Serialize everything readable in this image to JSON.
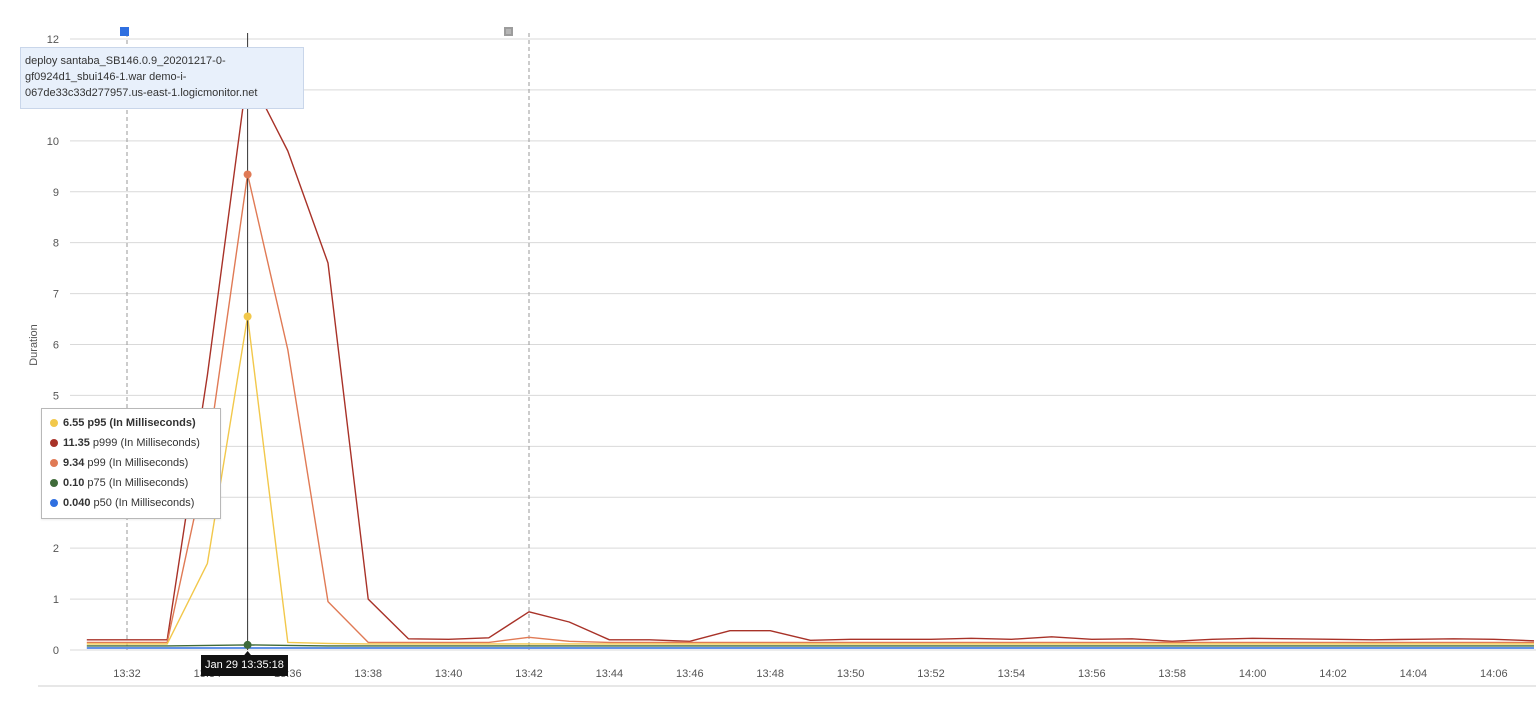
{
  "chart_data": {
    "type": "line",
    "ylabel": "Duration",
    "ylim": [
      0,
      12
    ],
    "yticks": [
      "0",
      "1",
      "2",
      "3",
      "4",
      "5",
      "6",
      "7",
      "8",
      "9",
      "10",
      "11",
      "12"
    ],
    "x": [
      "13:31",
      "13:32",
      "13:33",
      "13:34",
      "13:35",
      "13:36",
      "13:37",
      "13:38",
      "13:39",
      "13:40",
      "13:41",
      "13:42",
      "13:43",
      "13:44",
      "13:45",
      "13:46",
      "13:47",
      "13:48",
      "13:49",
      "13:50",
      "13:51",
      "13:52",
      "13:53",
      "13:54",
      "13:55",
      "13:56",
      "13:57",
      "13:58",
      "13:59",
      "14:00",
      "14:01",
      "14:02",
      "14:03",
      "14:04",
      "14:05",
      "14:06",
      "14:07"
    ],
    "xticks": [
      "13:32",
      "13:34",
      "13:36",
      "13:38",
      "13:40",
      "13:42",
      "13:44",
      "13:46",
      "13:48",
      "13:50",
      "13:52",
      "13:54",
      "13:56",
      "13:58",
      "14:00",
      "14:02",
      "14:04",
      "14:06"
    ],
    "series": [
      {
        "name": "p999 (In Milliseconds)",
        "color": "#a83228",
        "values": [
          0.2,
          0.2,
          0.2,
          5.4,
          11.35,
          9.8,
          7.6,
          1.0,
          0.22,
          0.21,
          0.24,
          0.75,
          0.55,
          0.2,
          0.2,
          0.17,
          0.38,
          0.38,
          0.19,
          0.21,
          0.21,
          0.21,
          0.23,
          0.21,
          0.26,
          0.21,
          0.22,
          0.17,
          0.21,
          0.23,
          0.22,
          0.21,
          0.2,
          0.21,
          0.22,
          0.21,
          0.18
        ]
      },
      {
        "name": "p99 (In Milliseconds)",
        "color": "#e07a55",
        "values": [
          0.15,
          0.15,
          0.15,
          3.8,
          9.34,
          5.9,
          0.95,
          0.15,
          0.15,
          0.15,
          0.15,
          0.25,
          0.17,
          0.15,
          0.15,
          0.15,
          0.15,
          0.15,
          0.15,
          0.15,
          0.15,
          0.15,
          0.15,
          0.15,
          0.15,
          0.15,
          0.15,
          0.15,
          0.15,
          0.15,
          0.15,
          0.15,
          0.15,
          0.15,
          0.15,
          0.15,
          0.15
        ]
      },
      {
        "name": "p95 (In Milliseconds)",
        "color": "#f2c84b",
        "values": [
          0.12,
          0.12,
          0.12,
          1.7,
          6.55,
          0.15,
          0.13,
          0.12,
          0.12,
          0.12,
          0.12,
          0.12,
          0.12,
          0.12,
          0.12,
          0.12,
          0.12,
          0.12,
          0.12,
          0.12,
          0.12,
          0.12,
          0.12,
          0.12,
          0.12,
          0.12,
          0.12,
          0.12,
          0.12,
          0.12,
          0.12,
          0.12,
          0.12,
          0.12,
          0.12,
          0.12,
          0.12
        ]
      },
      {
        "name": "p75 (In Milliseconds)",
        "color": "#3f6b3a",
        "values": [
          0.08,
          0.08,
          0.08,
          0.09,
          0.1,
          0.09,
          0.08,
          0.08,
          0.08,
          0.08,
          0.08,
          0.08,
          0.08,
          0.08,
          0.08,
          0.08,
          0.08,
          0.08,
          0.08,
          0.08,
          0.08,
          0.08,
          0.08,
          0.08,
          0.08,
          0.08,
          0.08,
          0.08,
          0.08,
          0.08,
          0.08,
          0.08,
          0.08,
          0.08,
          0.08,
          0.08,
          0.08
        ]
      },
      {
        "name": "p50 (In Milliseconds)",
        "color": "#2f6fe0",
        "values": [
          0.04,
          0.04,
          0.04,
          0.04,
          0.04,
          0.04,
          0.04,
          0.04,
          0.04,
          0.04,
          0.04,
          0.04,
          0.04,
          0.04,
          0.04,
          0.04,
          0.04,
          0.04,
          0.04,
          0.04,
          0.04,
          0.04,
          0.04,
          0.04,
          0.04,
          0.04,
          0.04,
          0.04,
          0.04,
          0.04,
          0.04,
          0.04,
          0.04,
          0.04,
          0.04,
          0.04,
          0.04
        ]
      }
    ],
    "hover_x": "13:35",
    "hover_points": [
      {
        "color": "#a83228",
        "y": 11.35
      },
      {
        "color": "#e07a55",
        "y": 9.34
      },
      {
        "color": "#f2c84b",
        "y": 6.55
      },
      {
        "color": "#3f6b3a",
        "y": 0.1
      }
    ],
    "event_markers_x": [
      "13:32",
      "13:42"
    ],
    "grid": true,
    "legend": {
      "placement": "bottom-left",
      "items": [
        {
          "value": "6.55",
          "label": "p95 (In Milliseconds)",
          "color": "#f2c84b",
          "highlight": true
        },
        {
          "value": "11.35",
          "label": "p999 (In Milliseconds)",
          "color": "#a83228",
          "highlight": false
        },
        {
          "value": "9.34",
          "label": "p99 (In Milliseconds)",
          "color": "#e07a55",
          "highlight": false
        },
        {
          "value": "0.10",
          "label": "p75 (In Milliseconds)",
          "color": "#3f6b3a",
          "highlight": false
        },
        {
          "value": "0.040",
          "label": "p50 (In Milliseconds)",
          "color": "#2f6fe0",
          "highlight": false
        }
      ]
    },
    "annotation": {
      "line1": "deploy santaba_SB146.0.9_20201217-0-",
      "line2": "gf0924d1_sbui146-1.war demo-i-",
      "line3": "067de33c33d277957.us-east-1.logicmonitor.net"
    },
    "tooltip_time": "Jan 29 13:35:18"
  }
}
